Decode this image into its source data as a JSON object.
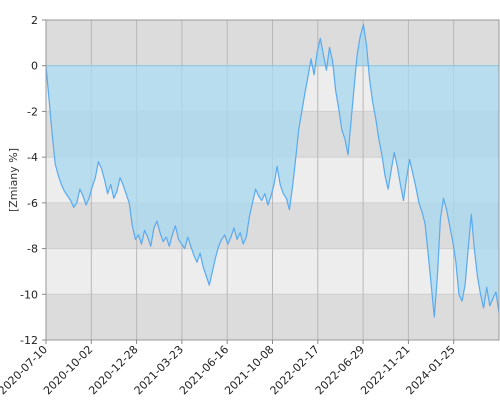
{
  "chart_data": {
    "type": "line",
    "ylabel": "[Zmiany %]",
    "ylim": [
      -12,
      2
    ],
    "yticks": [
      2,
      0,
      -2,
      -4,
      -6,
      -8,
      -10,
      -12
    ],
    "x_tick_labels": [
      "2020-07-10",
      "2020-10-02",
      "2020-12-28",
      "2021-03-23",
      "2021-06-16",
      "2021-10-08",
      "2022-02-17",
      "2022-06-29",
      "2022-11-21",
      "2024-01-25"
    ],
    "grid": true,
    "bands": [
      [
        0,
        2
      ],
      [
        -4,
        -2
      ],
      [
        -8,
        -6
      ],
      [
        -12,
        -10
      ]
    ],
    "area_color": "#a9d8ee",
    "line_color": "#5aaaf0",
    "series": [
      {
        "values": [
          0.0,
          -1.5,
          -3.0,
          -4.3,
          -4.8,
          -5.2,
          -5.5,
          -5.7,
          -5.9,
          -6.2,
          -6.0,
          -5.4,
          -5.7,
          -6.1,
          -5.8,
          -5.3,
          -4.9,
          -4.2,
          -4.5,
          -5.0,
          -5.6,
          -5.2,
          -5.8,
          -5.5,
          -4.9,
          -5.2,
          -5.6,
          -6.0,
          -7.0,
          -7.6,
          -7.4,
          -7.8,
          -7.2,
          -7.5,
          -7.9,
          -7.1,
          -6.8,
          -7.3,
          -7.7,
          -7.5,
          -7.9,
          -7.4,
          -7.0,
          -7.6,
          -7.8,
          -8.0,
          -7.5,
          -7.9,
          -8.3,
          -8.6,
          -8.2,
          -8.8,
          -9.2,
          -9.6,
          -9.0,
          -8.4,
          -7.9,
          -7.6,
          -7.4,
          -7.8,
          -7.5,
          -7.1,
          -7.6,
          -7.3,
          -7.8,
          -7.5,
          -6.6,
          -6.0,
          -5.4,
          -5.7,
          -5.9,
          -5.6,
          -6.1,
          -5.7,
          -5.2,
          -4.4,
          -5.2,
          -5.6,
          -5.8,
          -6.3,
          -5.3,
          -4.1,
          -2.8,
          -2.0,
          -1.2,
          -0.5,
          0.3,
          -0.4,
          0.6,
          1.2,
          0.5,
          -0.2,
          0.8,
          0.2,
          -1.1,
          -1.9,
          -2.8,
          -3.2,
          -3.9,
          -2.4,
          -0.9,
          0.5,
          1.3,
          1.8,
          0.9,
          -0.6,
          -1.6,
          -2.3,
          -3.2,
          -3.9,
          -4.8,
          -5.4,
          -4.6,
          -3.8,
          -4.4,
          -5.2,
          -5.9,
          -4.9,
          -4.1,
          -4.7,
          -5.3,
          -6.0,
          -6.4,
          -6.9,
          -8.2,
          -9.6,
          -11.0,
          -9.2,
          -6.7,
          -5.8,
          -6.3,
          -7.0,
          -7.7,
          -8.6,
          -10.0,
          -10.3,
          -9.6,
          -8.0,
          -6.5,
          -8.0,
          -9.2,
          -10.0,
          -10.6,
          -9.7,
          -10.5,
          -10.2,
          -9.9,
          -10.8
        ]
      }
    ]
  }
}
